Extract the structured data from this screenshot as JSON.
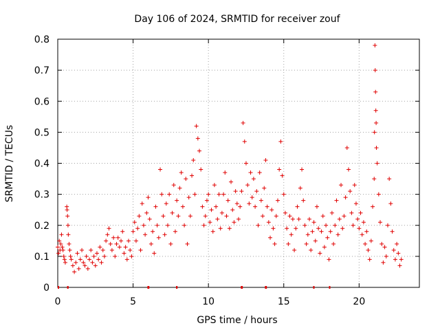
{
  "chart_data": {
    "type": "scatter",
    "title": "Day 106 of 2024, SRMTID for receiver zouf",
    "xlabel": "GPS time / hours",
    "ylabel": "SRMTID / TECUs",
    "xlim": [
      0,
      24
    ],
    "ylim": [
      0,
      0.8
    ],
    "x_ticks": [
      0,
      5,
      10,
      15,
      20
    ],
    "x_tick_labels": [
      "0",
      "5",
      "10",
      "15",
      "20"
    ],
    "y_ticks": [
      0,
      0.1,
      0.2,
      0.3,
      0.4,
      0.5,
      0.6,
      0.7,
      0.8
    ],
    "y_tick_labels": [
      "0",
      "0.1",
      "0.2",
      "0.3",
      "0.4",
      "0.5",
      "0.6",
      "0.7",
      "0.8"
    ],
    "grid": true,
    "marker": "+",
    "series": [
      {
        "name": "SRMTID",
        "color": "#e00000",
        "points": [
          [
            0.0,
            0.13
          ],
          [
            0.05,
            0.11
          ],
          [
            0.1,
            0.15
          ],
          [
            0.15,
            0.12
          ],
          [
            0.2,
            0.14
          ],
          [
            0.25,
            0.17
          ],
          [
            0.3,
            0.13
          ],
          [
            0.35,
            0.12
          ],
          [
            0.4,
            0.1
          ],
          [
            0.45,
            0.09
          ],
          [
            0.5,
            0.08
          ],
          [
            0.6,
            0.26
          ],
          [
            0.62,
            0.25
          ],
          [
            0.65,
            0.23
          ],
          [
            0.68,
            0.2
          ],
          [
            0.7,
            0.17
          ],
          [
            0.75,
            0.14
          ],
          [
            0.8,
            0.12
          ],
          [
            0.85,
            0.1
          ],
          [
            0.9,
            0.09
          ],
          [
            1.0,
            0.07
          ],
          [
            1.1,
            0.05
          ],
          [
            1.2,
            0.08
          ],
          [
            1.3,
            0.11
          ],
          [
            1.4,
            0.06
          ],
          [
            1.5,
            0.09
          ],
          [
            1.6,
            0.12
          ],
          [
            1.7,
            0.08
          ],
          [
            1.8,
            0.07
          ],
          [
            1.9,
            0.1
          ],
          [
            2.0,
            0.06
          ],
          [
            2.1,
            0.09
          ],
          [
            2.2,
            0.12
          ],
          [
            2.3,
            0.08
          ],
          [
            2.4,
            0.1
          ],
          [
            2.5,
            0.07
          ],
          [
            2.6,
            0.11
          ],
          [
            2.7,
            0.09
          ],
          [
            2.8,
            0.13
          ],
          [
            2.9,
            0.08
          ],
          [
            3.0,
            0.12
          ],
          [
            3.1,
            0.1
          ],
          [
            3.2,
            0.15
          ],
          [
            3.3,
            0.17
          ],
          [
            3.4,
            0.19
          ],
          [
            3.5,
            0.14
          ],
          [
            3.6,
            0.12
          ],
          [
            3.7,
            0.16
          ],
          [
            3.8,
            0.1
          ],
          [
            3.9,
            0.14
          ],
          [
            4.0,
            0.16
          ],
          [
            4.1,
            0.13
          ],
          [
            4.2,
            0.15
          ],
          [
            4.3,
            0.18
          ],
          [
            4.4,
            0.11
          ],
          [
            4.5,
            0.13
          ],
          [
            4.6,
            0.09
          ],
          [
            4.7,
            0.15
          ],
          [
            4.8,
            0.12
          ],
          [
            4.9,
            0.1
          ],
          [
            5.0,
            0.18
          ],
          [
            5.1,
            0.21
          ],
          [
            5.2,
            0.15
          ],
          [
            5.3,
            0.19
          ],
          [
            5.4,
            0.23
          ],
          [
            5.5,
            0.12
          ],
          [
            5.6,
            0.27
          ],
          [
            5.7,
            0.2
          ],
          [
            5.8,
            0.17
          ],
          [
            5.9,
            0.24
          ],
          [
            6.0,
            0.29
          ],
          [
            6.1,
            0.22
          ],
          [
            6.2,
            0.14
          ],
          [
            6.3,
            0.18
          ],
          [
            6.4,
            0.11
          ],
          [
            6.5,
            0.26
          ],
          [
            6.6,
            0.2
          ],
          [
            6.7,
            0.16
          ],
          [
            6.8,
            0.38
          ],
          [
            6.9,
            0.3
          ],
          [
            7.0,
            0.23
          ],
          [
            7.1,
            0.17
          ],
          [
            7.2,
            0.27
          ],
          [
            7.3,
            0.2
          ],
          [
            7.4,
            0.3
          ],
          [
            7.5,
            0.14
          ],
          [
            7.6,
            0.24
          ],
          [
            7.7,
            0.33
          ],
          [
            7.8,
            0.18
          ],
          [
            7.9,
            0.28
          ],
          [
            8.0,
            0.23
          ],
          [
            8.1,
            0.32
          ],
          [
            8.2,
            0.37
          ],
          [
            8.3,
            0.26
          ],
          [
            8.4,
            0.2
          ],
          [
            8.5,
            0.35
          ],
          [
            8.6,
            0.14
          ],
          [
            8.7,
            0.29
          ],
          [
            8.8,
            0.23
          ],
          [
            8.9,
            0.36
          ],
          [
            9.0,
            0.41
          ],
          [
            9.1,
            0.3
          ],
          [
            9.2,
            0.52
          ],
          [
            9.3,
            0.48
          ],
          [
            9.4,
            0.44
          ],
          [
            9.5,
            0.38
          ],
          [
            9.6,
            0.26
          ],
          [
            9.7,
            0.2
          ],
          [
            9.8,
            0.23
          ],
          [
            9.9,
            0.28
          ],
          [
            10.0,
            0.3
          ],
          [
            10.1,
            0.21
          ],
          [
            10.2,
            0.25
          ],
          [
            10.3,
            0.18
          ],
          [
            10.4,
            0.33
          ],
          [
            10.5,
            0.26
          ],
          [
            10.6,
            0.22
          ],
          [
            10.7,
            0.3
          ],
          [
            10.8,
            0.19
          ],
          [
            10.9,
            0.24
          ],
          [
            11.0,
            0.3
          ],
          [
            11.1,
            0.37
          ],
          [
            11.2,
            0.23
          ],
          [
            11.3,
            0.28
          ],
          [
            11.4,
            0.19
          ],
          [
            11.5,
            0.34
          ],
          [
            11.6,
            0.25
          ],
          [
            11.7,
            0.21
          ],
          [
            11.8,
            0.31
          ],
          [
            11.9,
            0.27
          ],
          [
            12.0,
            0.22
          ],
          [
            12.1,
            0.26
          ],
          [
            12.2,
            0.31
          ],
          [
            12.3,
            0.53
          ],
          [
            12.4,
            0.47
          ],
          [
            12.5,
            0.4
          ],
          [
            12.6,
            0.33
          ],
          [
            12.7,
            0.27
          ],
          [
            12.8,
            0.37
          ],
          [
            12.9,
            0.29
          ],
          [
            13.0,
            0.35
          ],
          [
            13.1,
            0.26
          ],
          [
            13.2,
            0.31
          ],
          [
            13.3,
            0.2
          ],
          [
            13.4,
            0.37
          ],
          [
            13.5,
            0.28
          ],
          [
            13.6,
            0.23
          ],
          [
            13.7,
            0.32
          ],
          [
            13.8,
            0.41
          ],
          [
            13.9,
            0.26
          ],
          [
            14.0,
            0.21
          ],
          [
            14.1,
            0.16
          ],
          [
            14.2,
            0.25
          ],
          [
            14.3,
            0.19
          ],
          [
            14.4,
            0.14
          ],
          [
            14.5,
            0.23
          ],
          [
            14.6,
            0.28
          ],
          [
            14.7,
            0.38
          ],
          [
            14.8,
            0.47
          ],
          [
            14.9,
            0.36
          ],
          [
            15.0,
            0.3
          ],
          [
            15.1,
            0.24
          ],
          [
            15.2,
            0.19
          ],
          [
            15.3,
            0.14
          ],
          [
            15.4,
            0.23
          ],
          [
            15.5,
            0.17
          ],
          [
            15.6,
            0.22
          ],
          [
            15.7,
            0.12
          ],
          [
            15.8,
            0.19
          ],
          [
            15.9,
            0.26
          ],
          [
            16.0,
            0.22
          ],
          [
            16.1,
            0.32
          ],
          [
            16.2,
            0.38
          ],
          [
            16.3,
            0.28
          ],
          [
            16.4,
            0.2
          ],
          [
            16.5,
            0.14
          ],
          [
            16.6,
            0.17
          ],
          [
            16.7,
            0.22
          ],
          [
            16.8,
            0.12
          ],
          [
            16.9,
            0.18
          ],
          [
            17.0,
            0.21
          ],
          [
            17.1,
            0.15
          ],
          [
            17.2,
            0.26
          ],
          [
            17.3,
            0.19
          ],
          [
            17.4,
            0.11
          ],
          [
            17.5,
            0.18
          ],
          [
            17.6,
            0.23
          ],
          [
            17.7,
            0.13
          ],
          [
            17.8,
            0.2
          ],
          [
            17.9,
            0.16
          ],
          [
            18.0,
            0.09
          ],
          [
            18.1,
            0.18
          ],
          [
            18.2,
            0.24
          ],
          [
            18.3,
            0.14
          ],
          [
            18.4,
            0.2
          ],
          [
            18.5,
            0.28
          ],
          [
            18.6,
            0.17
          ],
          [
            18.7,
            0.22
          ],
          [
            18.8,
            0.33
          ],
          [
            18.9,
            0.19
          ],
          [
            19.0,
            0.23
          ],
          [
            19.1,
            0.29
          ],
          [
            19.2,
            0.45
          ],
          [
            19.3,
            0.38
          ],
          [
            19.4,
            0.31
          ],
          [
            19.5,
            0.24
          ],
          [
            19.6,
            0.2
          ],
          [
            19.7,
            0.33
          ],
          [
            19.8,
            0.27
          ],
          [
            19.9,
            0.22
          ],
          [
            20.0,
            0.19
          ],
          [
            20.1,
            0.24
          ],
          [
            20.2,
            0.17
          ],
          [
            20.3,
            0.21
          ],
          [
            20.4,
            0.14
          ],
          [
            20.5,
            0.18
          ],
          [
            20.6,
            0.12
          ],
          [
            20.7,
            0.09
          ],
          [
            20.8,
            0.15
          ],
          [
            20.9,
            0.26
          ],
          [
            21.0,
            0.35
          ],
          [
            21.02,
            0.5
          ],
          [
            21.05,
            0.78
          ],
          [
            21.07,
            0.7
          ],
          [
            21.09,
            0.63
          ],
          [
            21.11,
            0.57
          ],
          [
            21.13,
            0.53
          ],
          [
            21.15,
            0.45
          ],
          [
            21.2,
            0.4
          ],
          [
            21.3,
            0.3
          ],
          [
            21.4,
            0.21
          ],
          [
            21.5,
            0.14
          ],
          [
            21.6,
            0.08
          ],
          [
            21.7,
            0.13
          ],
          [
            21.8,
            0.1
          ],
          [
            21.9,
            0.2
          ],
          [
            22.0,
            0.35
          ],
          [
            22.1,
            0.27
          ],
          [
            22.2,
            0.18
          ],
          [
            22.3,
            0.12
          ],
          [
            22.4,
            0.09
          ],
          [
            22.5,
            0.14
          ],
          [
            22.6,
            0.11
          ],
          [
            22.7,
            0.07
          ],
          [
            22.8,
            0.09
          ]
        ]
      }
    ],
    "gaps": [
      [
        0.0,
        0.04
      ],
      [
        0.62,
        0.72
      ],
      [
        5.95,
        6.08
      ],
      [
        7.85,
        7.95
      ],
      [
        12.15,
        12.28
      ],
      [
        13.75,
        13.88
      ],
      [
        16.95,
        17.02
      ],
      [
        18.0,
        18.08
      ]
    ]
  }
}
